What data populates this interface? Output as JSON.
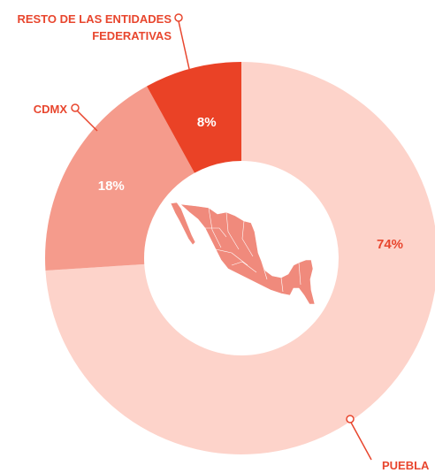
{
  "chart_data": {
    "type": "pie",
    "variant": "donut",
    "slices": [
      {
        "label": "PUEBLA",
        "value": 74,
        "value_label": "74%",
        "color": "#fdd3ca",
        "text_color": "#e8462e"
      },
      {
        "label": "CDMX",
        "value": 18,
        "value_label": "18%",
        "color": "#f59b8c",
        "text_color": "#ffffff"
      },
      {
        "label": "RESTO DE LAS ENTIDADES FEDERATIVAS",
        "label_lines": [
          "RESTO DE LAS ENTIDADES",
          "FEDERATIVAS"
        ],
        "value": 8,
        "value_label": "8%",
        "color": "#ea4226",
        "text_color": "#ffffff"
      }
    ],
    "center_image": "mexico-map-icon",
    "label_color": "#e8462e",
    "map_color": "#f08a7c"
  }
}
